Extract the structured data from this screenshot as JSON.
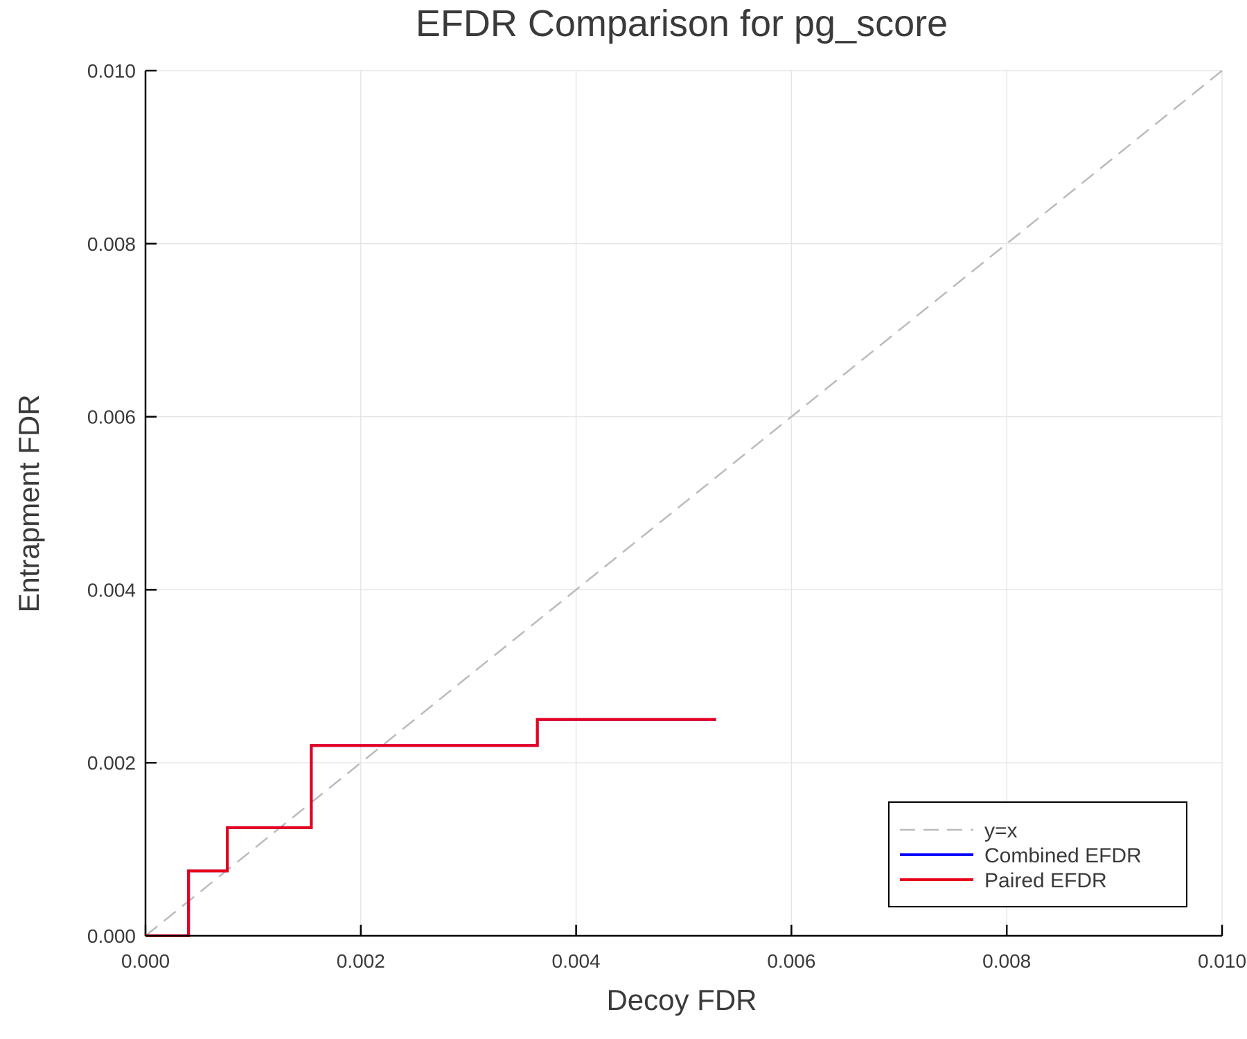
{
  "chart_data": {
    "type": "line",
    "title": "EFDR Comparison for pg_score",
    "xlabel": "Decoy FDR",
    "ylabel": "Entrapment FDR",
    "xlim": [
      0,
      0.01
    ],
    "ylim": [
      0,
      0.01
    ],
    "xticks": [
      "0.000",
      "0.002",
      "0.004",
      "0.006",
      "0.008",
      "0.010"
    ],
    "yticks": [
      "0.000",
      "0.002",
      "0.004",
      "0.006",
      "0.008",
      "0.010"
    ],
    "grid": true,
    "legend_position": "bottom-right",
    "series": [
      {
        "name": "y=x",
        "style": "dashed",
        "color": "#bbbbbb",
        "x": [
          0,
          0.01
        ],
        "y": [
          0,
          0.01
        ]
      },
      {
        "name": "Combined EFDR",
        "style": "step",
        "color": "#0000ff",
        "x": [
          0,
          0.0004,
          0.0004,
          0.00076,
          0.00076,
          0.00154,
          0.00154,
          0.00364,
          0.00364,
          0.0053
        ],
        "y": [
          0,
          0,
          0.00075,
          0.00075,
          0.00125,
          0.00125,
          0.0022,
          0.0022,
          0.0025,
          0.0025
        ]
      },
      {
        "name": "Paired EFDR",
        "style": "step",
        "color": "#e8001c",
        "x": [
          0,
          0.0004,
          0.0004,
          0.00076,
          0.00076,
          0.00154,
          0.00154,
          0.00364,
          0.00364,
          0.0053
        ],
        "y": [
          0,
          0,
          0.00075,
          0.00075,
          0.00125,
          0.00125,
          0.0022,
          0.0022,
          0.0025,
          0.0025
        ]
      }
    ]
  }
}
